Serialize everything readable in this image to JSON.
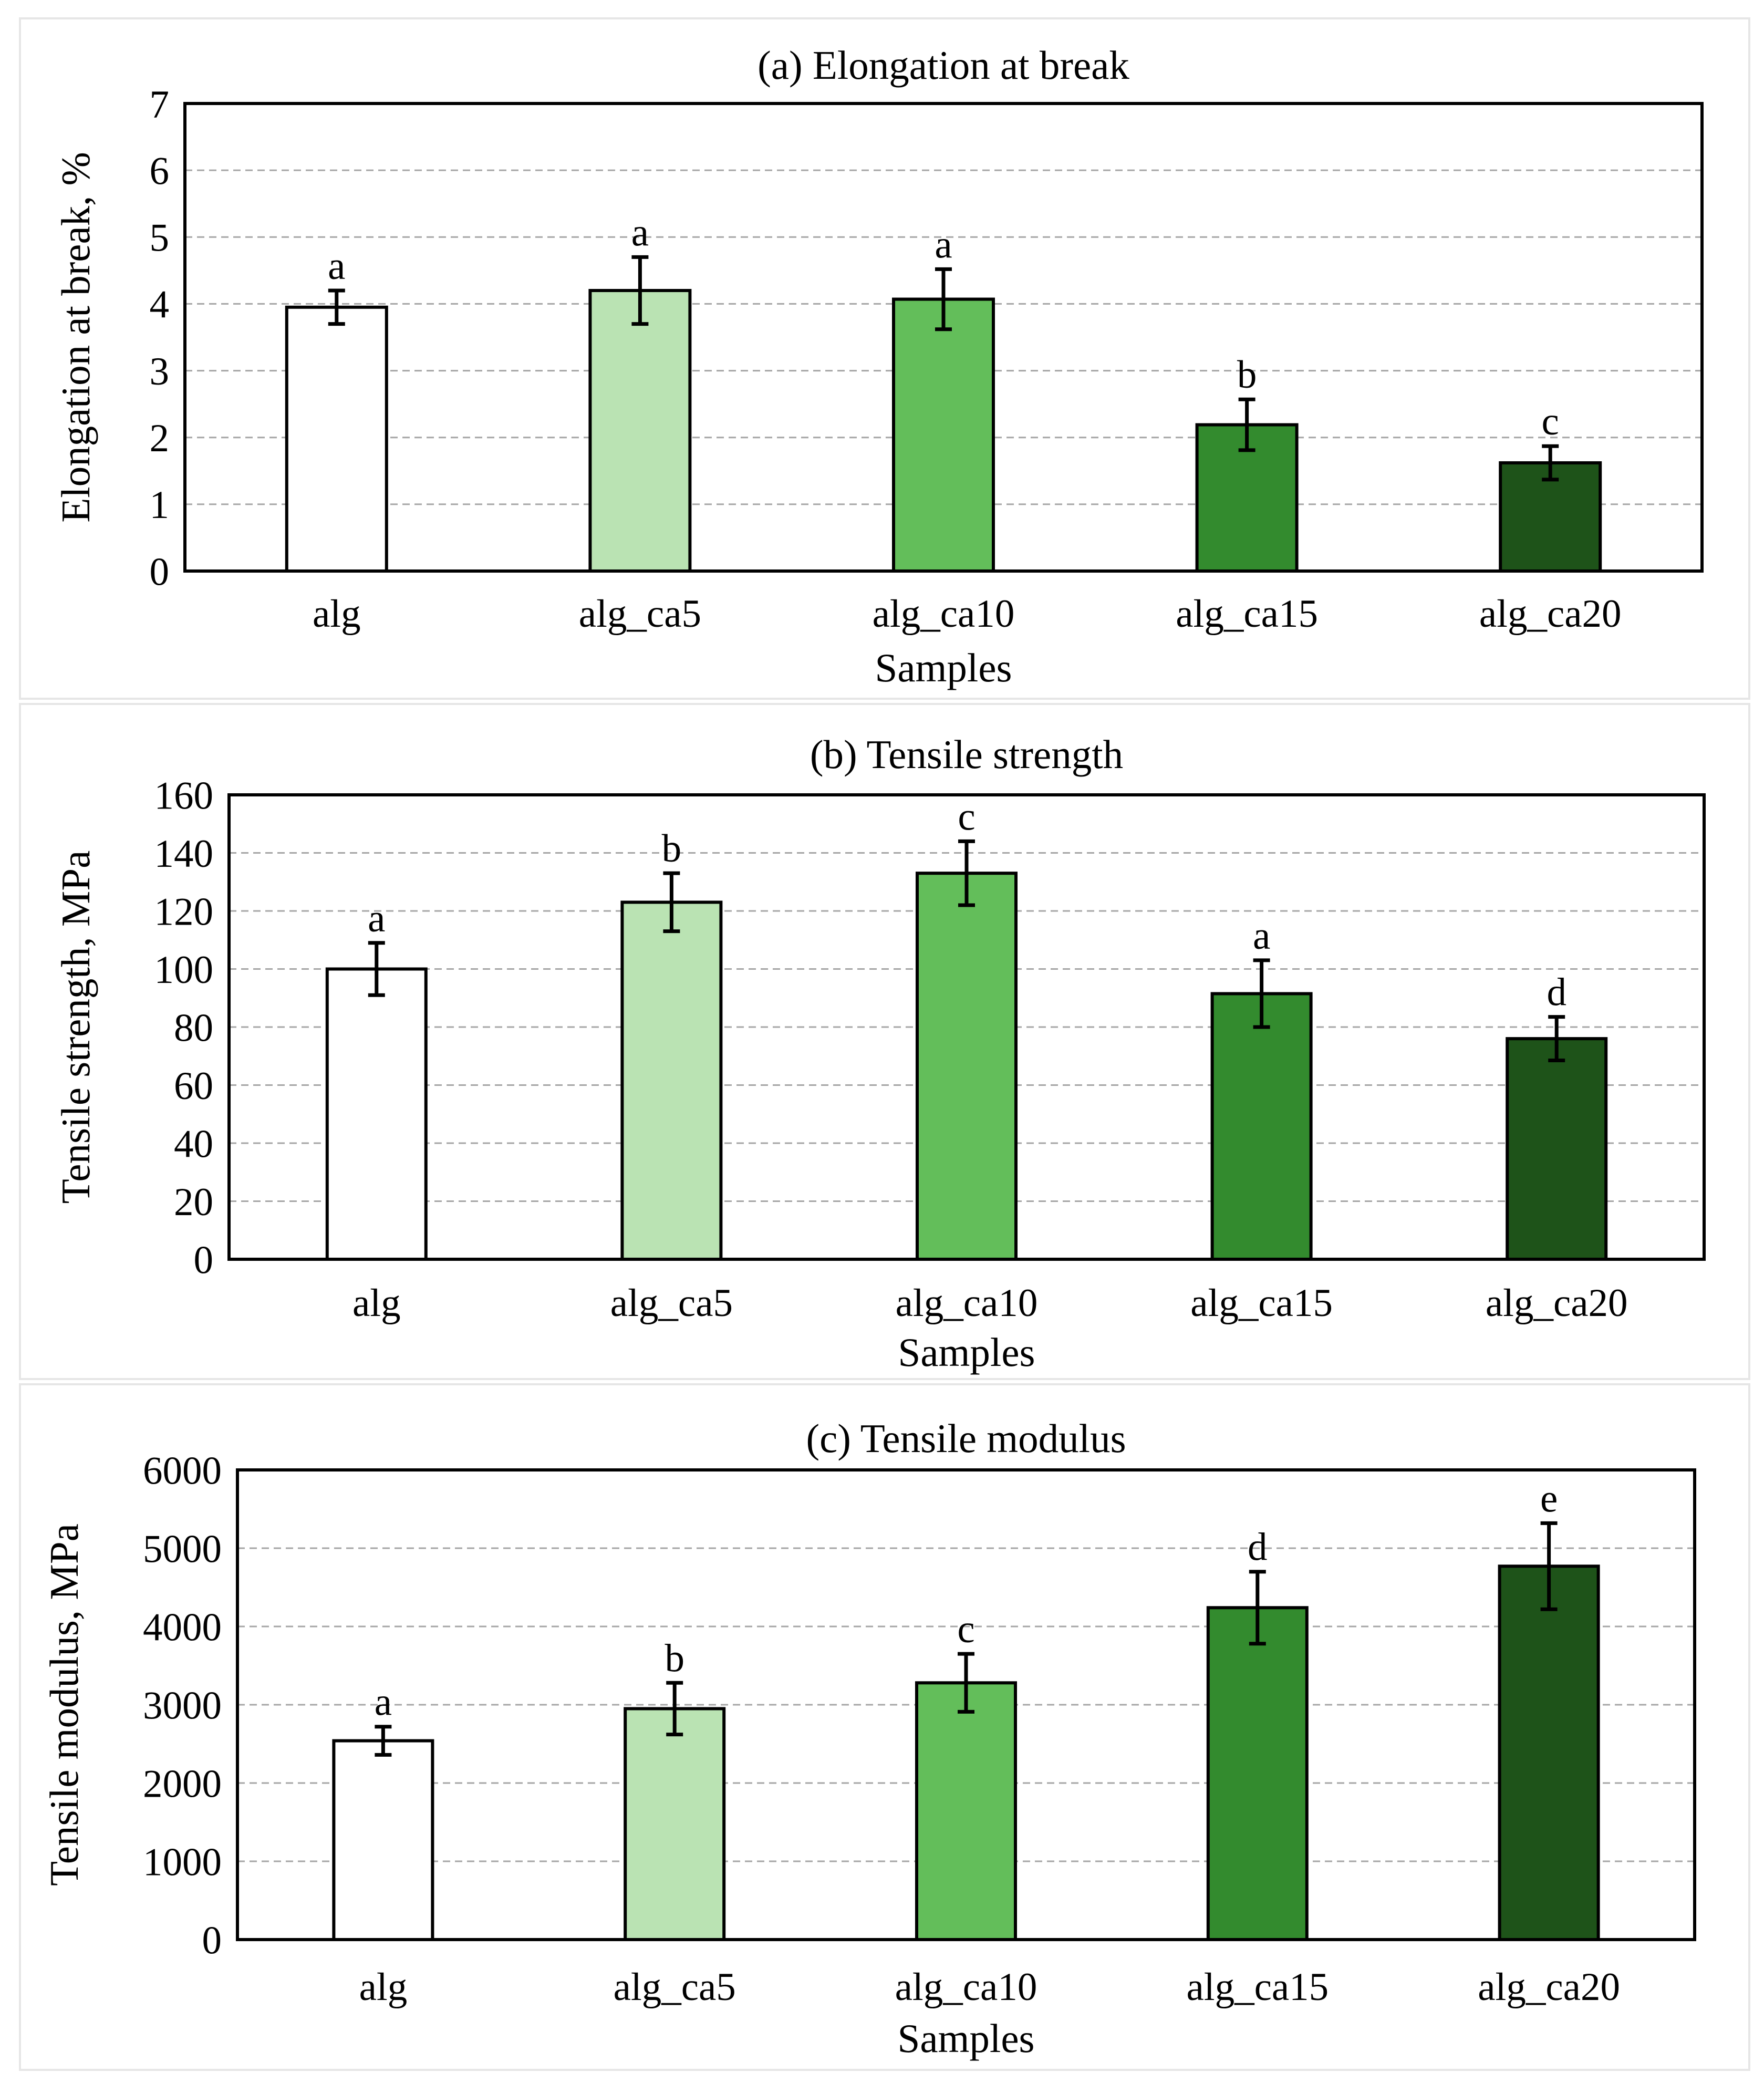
{
  "colors": {
    "bar_fills": [
      "#ffffff",
      "#bae3b3",
      "#63be5a",
      "#338b2e",
      "#1e5319"
    ],
    "bar_stroke": "#000000",
    "grid": "#a6a6a6",
    "panel_border": "#e6e6e6"
  },
  "chart_data": [
    {
      "type": "bar",
      "title": "(a) Elongation at break",
      "xlabel": "Samples",
      "ylabel": "Elongation at break, %",
      "categories": [
        "alg",
        "alg_ca5",
        "alg_ca10",
        "alg_ca15",
        "alg_ca20"
      ],
      "values": [
        3.95,
        4.2,
        4.07,
        2.19,
        1.62
      ],
      "errors": [
        0.25,
        0.5,
        0.45,
        0.38,
        0.25
      ],
      "letters": [
        "a",
        "a",
        "a",
        "b",
        "c"
      ],
      "ylim": [
        0,
        7
      ],
      "yticks": [
        "0",
        "1",
        "2",
        "3",
        "4",
        "5",
        "6",
        "7"
      ],
      "grid": true
    },
    {
      "type": "bar",
      "title": "(b) Tensile strength",
      "xlabel": "Samples",
      "ylabel": "Tensile strength, MPa",
      "categories": [
        "alg",
        "alg_ca5",
        "alg_ca10",
        "alg_ca15",
        "alg_ca20"
      ],
      "values": [
        100,
        123,
        133,
        91.5,
        76
      ],
      "errors": [
        9,
        10,
        11,
        11.5,
        7.5
      ],
      "letters": [
        "a",
        "b",
        "c",
        "a",
        "d"
      ],
      "ylim": [
        0,
        160
      ],
      "yticks": [
        "0",
        "20",
        "40",
        "60",
        "80",
        "100",
        "120",
        "140",
        "160"
      ],
      "grid": true
    },
    {
      "type": "bar",
      "title": "(c) Tensile modulus",
      "xlabel": "Samples",
      "ylabel": "Tensile modulus, MPa",
      "categories": [
        "alg",
        "alg_ca5",
        "alg_ca10",
        "alg_ca15",
        "alg_ca20"
      ],
      "values": [
        2540,
        2950,
        3280,
        4240,
        4770
      ],
      "errors": [
        180,
        330,
        370,
        460,
        550
      ],
      "letters": [
        "a",
        "b",
        "c",
        "d",
        "e"
      ],
      "ylim": [
        0,
        6000
      ],
      "yticks": [
        "0",
        "1000",
        "2000",
        "3000",
        "4000",
        "5000",
        "6000"
      ],
      "grid": true
    }
  ]
}
